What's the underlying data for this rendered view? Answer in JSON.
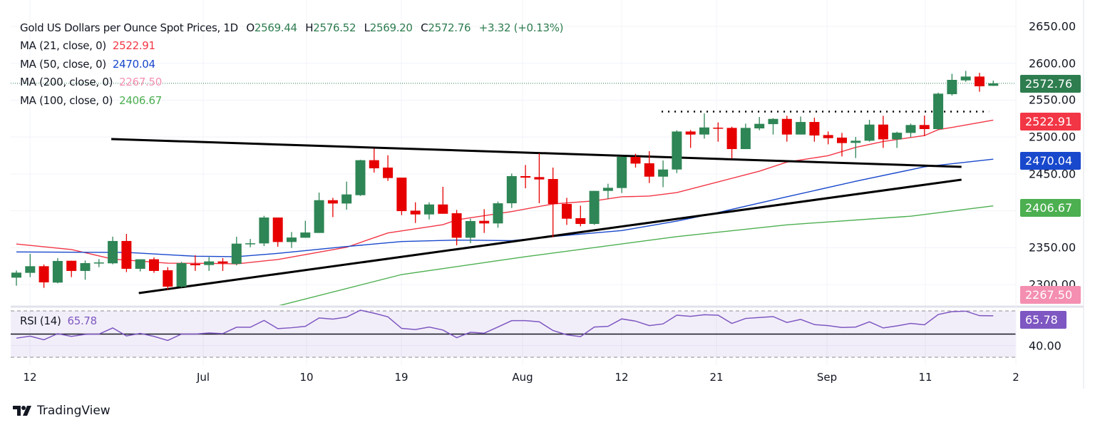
{
  "header": {
    "title": "Gold US Dollars per Ounce Spot Prices, 1D",
    "o_label": "O",
    "o": "2569.44",
    "h_label": "H",
    "h": "2576.52",
    "l_label": "L",
    "l": "2569.20",
    "c_label": "C",
    "c": "2572.76",
    "change": "+3.32 (+0.13%)"
  },
  "indicators": [
    {
      "label": "MA (21, close, 0)",
      "value": "2522.91",
      "color": "#f23645"
    },
    {
      "label": "MA (50, close, 0)",
      "value": "2470.04",
      "color": "#1848cc"
    },
    {
      "label": "MA (200, close, 0)",
      "value": "2267.50",
      "color": "#f48fb1"
    },
    {
      "label": "MA (100, close, 0)",
      "value": "2406.67",
      "color": "#4caf50"
    }
  ],
  "rsi": {
    "label": "RSI (14)",
    "value": "65.78",
    "color": "#7e57c2"
  },
  "price_axis": {
    "ticks": [
      "2650.00",
      "2600.00",
      "2550.00",
      "2500.00",
      "2450.00",
      "2350.00",
      "2300.00"
    ],
    "rsi_tick": "40.00"
  },
  "badges": [
    {
      "value": "2572.76",
      "color": "#2e7d4f"
    },
    {
      "value": "2522.91",
      "color": "#f23645"
    },
    {
      "value": "2470.04",
      "color": "#1848cc"
    },
    {
      "value": "2406.67",
      "color": "#4caf50"
    },
    {
      "value": "2267.50",
      "color": "#f48fb1"
    },
    {
      "value": "65.78",
      "color": "#7e57c2"
    }
  ],
  "x_axis": {
    "ticks": [
      "12",
      "Jul",
      "10",
      "19",
      "Aug",
      "12",
      "21",
      "Sep",
      "11",
      "2"
    ]
  },
  "logo": "TradingView",
  "chart_data": {
    "type": "candlestick",
    "ylim": [
      2270,
      2650
    ],
    "grid": true,
    "up_color": "#2e8555",
    "down_color": "#e60000",
    "candles": [
      [
        2309.4,
        2319.1,
        2298.5,
        2316.2
      ],
      [
        2315.9,
        2341.7,
        2310.1,
        2324.9
      ],
      [
        2324.9,
        2327.2,
        2295.6,
        2303.0
      ],
      [
        2302.7,
        2335.9,
        2301.7,
        2332.0
      ],
      [
        2332.3,
        2332.3,
        2310.1,
        2318.5
      ],
      [
        2318.5,
        2332.6,
        2306.6,
        2329.1
      ],
      [
        2329.3,
        2334.6,
        2323.6,
        2330.0
      ],
      [
        2328.8,
        2364.9,
        2327.5,
        2359.1
      ],
      [
        2359.1,
        2368.7,
        2316.9,
        2321.4
      ],
      [
        2321.4,
        2334.3,
        2317.8,
        2334.3
      ],
      [
        2334.3,
        2336.8,
        2315.9,
        2318.5
      ],
      [
        2319.4,
        2323.6,
        2293.3,
        2297.2
      ],
      [
        2297.2,
        2330.7,
        2295.9,
        2329.1
      ],
      [
        2328.1,
        2339.7,
        2318.5,
        2326.2
      ],
      [
        2326.5,
        2337.2,
        2318.5,
        2331.4
      ],
      [
        2331.4,
        2335.9,
        2318.5,
        2328.8
      ],
      [
        2328.0,
        2364.8,
        2326.0,
        2355.5
      ],
      [
        2355.2,
        2361.9,
        2350.6,
        2356.0
      ],
      [
        2355.8,
        2393.2,
        2352.2,
        2390.9
      ],
      [
        2390.9,
        2390.9,
        2351.3,
        2357.7
      ],
      [
        2357.7,
        2371.3,
        2349.7,
        2363.8
      ],
      [
        2363.5,
        2386.4,
        2363.5,
        2370.6
      ],
      [
        2370.0,
        2424.7,
        2370.0,
        2414.4
      ],
      [
        2414.4,
        2417.6,
        2391.5,
        2409.9
      ],
      [
        2409.9,
        2439.6,
        2401.5,
        2422.2
      ],
      [
        2421.2,
        2469.2,
        2420.2,
        2468.6
      ],
      [
        2468.6,
        2484.3,
        2451.8,
        2457.6
      ],
      [
        2458.6,
        2475.3,
        2440.5,
        2444.4
      ],
      [
        2445.0,
        2445.0,
        2394.1,
        2399.6
      ],
      [
        2400.2,
        2411.5,
        2383.5,
        2395.1
      ],
      [
        2395.1,
        2411.5,
        2388.3,
        2408.6
      ],
      [
        2408.6,
        2432.5,
        2396.0,
        2396.0
      ],
      [
        2396.7,
        2401.2,
        2353.2,
        2363.5
      ],
      [
        2363.5,
        2389.3,
        2356.1,
        2386.1
      ],
      [
        2386.4,
        2402.2,
        2370.0,
        2382.9
      ],
      [
        2382.9,
        2412.5,
        2377.1,
        2410.2
      ],
      [
        2410.2,
        2450.5,
        2403.8,
        2447.0
      ],
      [
        2447.0,
        2462.1,
        2430.5,
        2445.0
      ],
      [
        2445.7,
        2477.9,
        2410.2,
        2442.5
      ],
      [
        2443.1,
        2458.6,
        2364.2,
        2409.3
      ],
      [
        2409.3,
        2417.6,
        2380.9,
        2389.3
      ],
      [
        2390.0,
        2407.0,
        2379.0,
        2382.2
      ],
      [
        2382.2,
        2427.0,
        2380.9,
        2427.0
      ],
      [
        2427.0,
        2436.7,
        2416.4,
        2431.2
      ],
      [
        2430.9,
        2473.1,
        2424.1,
        2473.1
      ],
      [
        2473.1,
        2477.3,
        2458.6,
        2464.0
      ],
      [
        2464.4,
        2480.8,
        2437.6,
        2446.3
      ],
      [
        2446.3,
        2468.2,
        2432.1,
        2456.0
      ],
      [
        2456.0,
        2509.2,
        2451.2,
        2507.5
      ],
      [
        2507.5,
        2509.5,
        2485.3,
        2503.4
      ],
      [
        2503.4,
        2532.0,
        2497.9,
        2513.0
      ],
      [
        2512.7,
        2519.8,
        2493.7,
        2511.4
      ],
      [
        2512.4,
        2514.0,
        2470.8,
        2483.7
      ],
      [
        2483.7,
        2518.2,
        2483.7,
        2512.4
      ],
      [
        2511.7,
        2527.2,
        2509.2,
        2517.9
      ],
      [
        2517.5,
        2525.6,
        2503.4,
        2524.6
      ],
      [
        2524.6,
        2528.8,
        2493.7,
        2503.4
      ],
      [
        2503.4,
        2527.8,
        2503.4,
        2520.4
      ],
      [
        2520.4,
        2526.2,
        2493.7,
        2502.1
      ],
      [
        2502.7,
        2507.5,
        2490.1,
        2498.5
      ],
      [
        2499.2,
        2505.6,
        2473.7,
        2491.8
      ],
      [
        2492.1,
        2500.1,
        2471.5,
        2495.0
      ],
      [
        2495.0,
        2523.3,
        2493.7,
        2516.9
      ],
      [
        2516.9,
        2528.8,
        2485.3,
        2496.9
      ],
      [
        2496.9,
        2507.2,
        2485.3,
        2505.9
      ],
      [
        2505.6,
        2518.2,
        2499.8,
        2516.3
      ],
      [
        2516.3,
        2529.1,
        2501.4,
        2510.8
      ],
      [
        2510.8,
        2560.1,
        2510.1,
        2558.8
      ],
      [
        2558.1,
        2585.8,
        2556.2,
        2577.5
      ],
      [
        2576.8,
        2589.7,
        2574.9,
        2582.0
      ],
      [
        2582.0,
        2587.1,
        2561.4,
        2568.8
      ],
      [
        2569.44,
        2576.52,
        2569.2,
        2572.76
      ]
    ],
    "moving_averages": [
      {
        "name": "MA (21, close, 0)",
        "color": "#f23645",
        "points": [
          [
            0,
            2355
          ],
          [
            4,
            2347.5
          ],
          [
            7,
            2334.6
          ],
          [
            11,
            2329
          ],
          [
            14,
            2328.8
          ],
          [
            16,
            2328
          ],
          [
            19,
            2334
          ],
          [
            24,
            2350.6
          ],
          [
            27,
            2370
          ],
          [
            31,
            2381.2
          ],
          [
            32,
            2387.7
          ],
          [
            36,
            2399
          ],
          [
            39,
            2409.3
          ],
          [
            42,
            2413.5
          ],
          [
            44,
            2419
          ],
          [
            46,
            2420
          ],
          [
            48,
            2424.7
          ],
          [
            54,
            2453.7
          ],
          [
            56,
            2466
          ],
          [
            59,
            2474.7
          ],
          [
            61,
            2486
          ],
          [
            63,
            2494
          ],
          [
            66,
            2502
          ],
          [
            67,
            2510
          ],
          [
            68,
            2513
          ],
          [
            71,
            2522.91
          ]
        ]
      },
      {
        "name": "MA (50, close, 0)",
        "color": "#1848cc",
        "points": [
          [
            0,
            2344.2
          ],
          [
            8,
            2343.6
          ],
          [
            13,
            2338.4
          ],
          [
            16,
            2337.8
          ],
          [
            19,
            2342.3
          ],
          [
            24,
            2351.6
          ],
          [
            28,
            2358.4
          ],
          [
            32,
            2360.3
          ],
          [
            36,
            2359.6
          ],
          [
            39,
            2365.1
          ],
          [
            44,
            2373.2
          ],
          [
            48,
            2386
          ],
          [
            51,
            2397.7
          ],
          [
            56,
            2419
          ],
          [
            61,
            2440
          ],
          [
            66,
            2459.6
          ],
          [
            71,
            2470.04
          ]
        ]
      },
      {
        "name": "MA (100, close, 0)",
        "color": "#4caf50",
        "points": [
          [
            19,
            2271
          ],
          [
            28,
            2313.6
          ],
          [
            37,
            2337.8
          ],
          [
            48,
            2365
          ],
          [
            56,
            2381
          ],
          [
            65,
            2392.7
          ],
          [
            71,
            2406.67
          ]
        ]
      }
    ],
    "trendlines": [
      {
        "kind": "resistance",
        "from": [
          7,
          2497.3
        ],
        "to": [
          69,
          2459.6
        ],
        "style": "solid"
      },
      {
        "kind": "support",
        "from": [
          9,
          2288.5
        ],
        "to": [
          69,
          2442.2
        ],
        "style": "solid"
      },
      {
        "kind": "horizontal",
        "from": [
          47,
          2534.5
        ],
        "to": [
          71,
          2534.5
        ],
        "style": "dotted"
      }
    ],
    "last_price": 2572.76,
    "rsi": {
      "period": 14,
      "levels": [
        70,
        50,
        30
      ],
      "values": [
        46.5,
        48.2,
        45.1,
        50.4,
        48.0,
        49.8,
        50.0,
        55.3,
        48.4,
        50.6,
        48.0,
        44.5,
        50.0,
        50.0,
        51.0,
        50.4,
        55.9,
        55.9,
        61.8,
        54.7,
        55.5,
        56.7,
        63.9,
        62.9,
        64.7,
        70.6,
        68.0,
        64.9,
        54.9,
        53.9,
        56.1,
        53.5,
        46.9,
        51.6,
        50.8,
        56.1,
        61.6,
        61.6,
        60.6,
        53.1,
        49.4,
        47.8,
        56.1,
        56.7,
        63.1,
        61.2,
        57.3,
        58.8,
        66.3,
        65.3,
        66.7,
        66.3,
        59.2,
        63.5,
        64.3,
        65.1,
        60.0,
        62.7,
        58.2,
        57.3,
        55.7,
        56.1,
        60.6,
        55.3,
        57.1,
        59.2,
        58.0,
        66.9,
        69.4,
        69.8,
        65.9,
        65.78
      ]
    }
  }
}
